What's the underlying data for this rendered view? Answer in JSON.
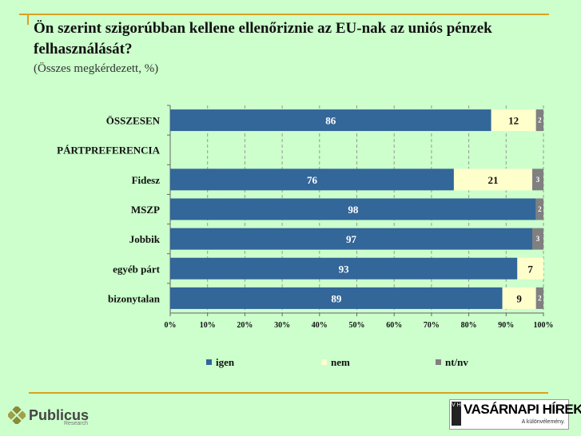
{
  "slide": {
    "title": "Ön szerint szigorúbban kellene ellenőriznie az EU-nak az uniós pénzek felhasználását?",
    "subtitle": "(Összes megkérdezett, %)"
  },
  "chart_data": {
    "type": "bar",
    "orientation": "horizontal",
    "stacked": true,
    "categories": [
      "ÖSSZESEN",
      "PÁRTPREFERENCIA",
      "Fidesz",
      "MSZP",
      "Jobbik",
      "egyéb párt",
      "bizonytalan"
    ],
    "series": [
      {
        "name": "igen",
        "color": "#336699",
        "values": [
          86,
          null,
          76,
          98,
          97,
          93,
          89
        ]
      },
      {
        "name": "nem",
        "color": "#ffffcc",
        "values": [
          12,
          null,
          21,
          null,
          null,
          7,
          9
        ]
      },
      {
        "name": "nt/nv",
        "color": "#808080",
        "values": [
          2,
          null,
          3,
          2,
          3,
          null,
          2
        ]
      }
    ],
    "xlim": [
      0,
      100
    ],
    "xticks": [
      "0%",
      "10%",
      "20%",
      "30%",
      "40%",
      "50%",
      "60%",
      "70%",
      "80%",
      "90%",
      "100%"
    ],
    "grid": true,
    "legend": "bottom"
  },
  "logos": {
    "publicus": "Publicus",
    "publicus_sub": "Research",
    "vh_box": "V H",
    "vh_name": "VASÁRNAPI HÍREK",
    "vh_tag": "A különvélemény."
  }
}
